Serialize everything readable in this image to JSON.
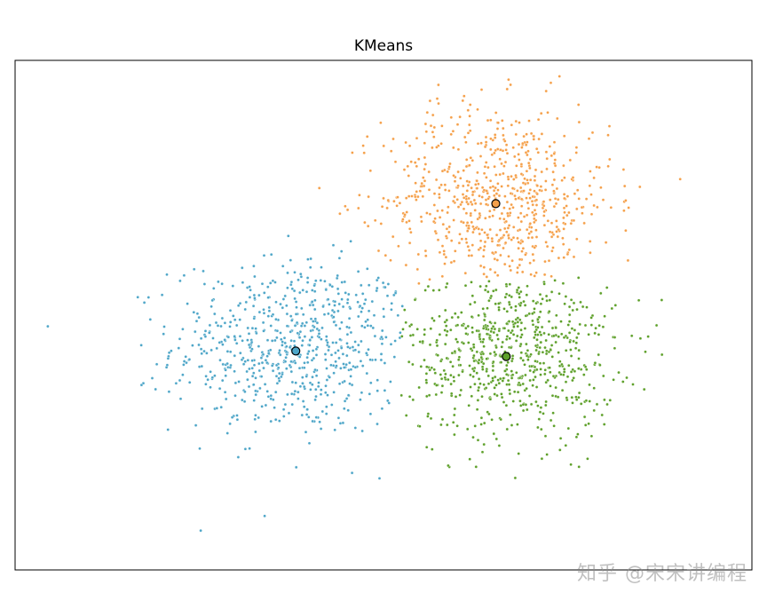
{
  "chart_data": {
    "type": "scatter",
    "title": "KMeans",
    "xlabel": "",
    "ylabel": "",
    "xlim": [
      -4.2,
      4.2
    ],
    "ylim": [
      -3.2,
      3.2
    ],
    "grid": false,
    "axis_ticks": false,
    "clusters": [
      {
        "color": "#4ea6c8",
        "center": [
          -1.0,
          -0.4
        ],
        "n_points": 700,
        "spread": [
          0.7,
          0.55
        ]
      },
      {
        "color": "#f5a04a",
        "center": [
          1.3,
          1.45
        ],
        "n_points": 700,
        "spread": [
          0.65,
          0.6
        ]
      },
      {
        "color": "#5ea02a",
        "center": [
          1.45,
          -0.45
        ],
        "n_points": 700,
        "spread": [
          0.6,
          0.55
        ]
      }
    ],
    "centroids": [
      {
        "x": -1.0,
        "y": -0.45,
        "color": "#4ea6c8"
      },
      {
        "x": 1.28,
        "y": 1.4,
        "color": "#f5a04a"
      },
      {
        "x": 1.4,
        "y": -0.52,
        "color": "#5ea02a"
      }
    ]
  },
  "watermark": "知乎 @宋宋讲编程"
}
